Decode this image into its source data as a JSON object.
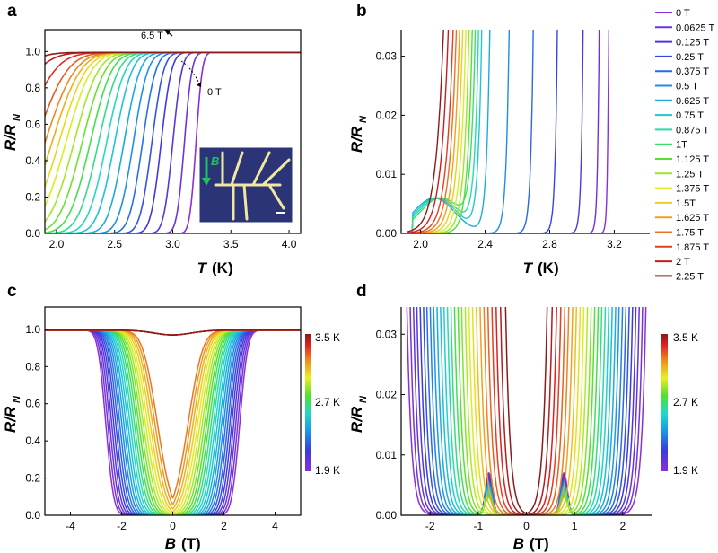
{
  "chart_data": [
    {
      "panel": "a",
      "type": "line",
      "xlabel": "T",
      "xunit": "(K)",
      "ylabel": "R/R",
      "ylabel_sub": "N",
      "xlim": [
        1.9,
        4.1
      ],
      "ylim": [
        0,
        1.12
      ],
      "xticks": [
        "2.0",
        "2.5",
        "3.0",
        "3.5",
        "4.0"
      ],
      "yticks": [
        "0.0",
        "0.2",
        "0.4",
        "0.6",
        "0.8",
        "1.0"
      ],
      "annotations": [
        "6.5 T",
        "0 T"
      ],
      "inset": {
        "type": "device micrograph",
        "field_arrow_label": "B"
      },
      "series": [
        {
          "tc": 3.2
        },
        {
          "tc": 3.1
        },
        {
          "tc": 3.0
        },
        {
          "tc": 2.9
        },
        {
          "tc": 2.82
        },
        {
          "tc": 2.74
        },
        {
          "tc": 2.66
        },
        {
          "tc": 2.58
        },
        {
          "tc": 2.5
        },
        {
          "tc": 2.43
        },
        {
          "tc": 2.36
        },
        {
          "tc": 2.29
        },
        {
          "tc": 2.22
        },
        {
          "tc": 2.15
        },
        {
          "tc": 2.08
        },
        {
          "tc": 2.02
        },
        {
          "tc": 1.96
        },
        {
          "tc": 1.9
        },
        {
          "tc": 1.82
        },
        {
          "tc": 1.7
        },
        {
          "tc": 1.55
        },
        {
          "tc": 1.4
        }
      ]
    },
    {
      "panel": "b",
      "type": "line",
      "xlabel": "T",
      "xunit": "(K)",
      "ylabel": "R/R",
      "ylabel_sub": "N",
      "xlim": [
        1.88,
        3.42
      ],
      "ylim": [
        0,
        0.0345
      ],
      "xticks": [
        "2.0",
        "2.4",
        "2.8",
        "3.2"
      ],
      "yticks": [
        "0.00",
        "0.01",
        "0.02",
        "0.03"
      ],
      "legend": [
        "0 T",
        "0.0625 T",
        "0.125 T",
        "0.25 T",
        "0.375 T",
        "0.5 T",
        "0.625 T",
        "0.75 T",
        "0.875 T",
        "1T",
        "1.125 T",
        "1.25 T",
        "1.375 T",
        "1.5T",
        "1.625 T",
        "1.75 T",
        "1.875 T",
        "2 T",
        "2.25 T"
      ],
      "legend_position": "right",
      "onsets": [
        3.13,
        3.06,
        2.95,
        2.78,
        2.62,
        2.46,
        2.33,
        2.27,
        2.24,
        2.21,
        2.18,
        2.15,
        2.12,
        2.09,
        2.06,
        2.03,
        2.0,
        1.96,
        1.92
      ]
    },
    {
      "panel": "c",
      "type": "line",
      "xlabel": "B",
      "xunit": "(T)",
      "ylabel": "R/R",
      "ylabel_sub": "N",
      "xlim": [
        -5,
        5
      ],
      "ylim": [
        0,
        1.12
      ],
      "xticks": [
        "-4",
        "-2",
        "0",
        "2",
        "4"
      ],
      "yticks": [
        "0.0",
        "0.2",
        "0.4",
        "0.6",
        "0.8",
        "1.0"
      ],
      "colorbar": {
        "min_label": "1.9 K",
        "mid_label": "2.7 K",
        "max_label": "3.5 K",
        "min": 1.9,
        "max": 3.5
      }
    },
    {
      "panel": "d",
      "type": "line",
      "xlabel": "B",
      "xunit": "(T)",
      "ylabel": "R/R",
      "ylabel_sub": "N",
      "xlim": [
        -2.6,
        2.6
      ],
      "ylim": [
        0,
        0.0345
      ],
      "xticks": [
        "-2",
        "-1",
        "0",
        "1",
        "2"
      ],
      "yticks": [
        "0.00",
        "0.01",
        "0.02",
        "0.03"
      ],
      "colorbar": {
        "min_label": "1.9 K",
        "mid_label": "2.7 K",
        "max_label": "3.5 K",
        "min": 1.9,
        "max": 3.5
      }
    }
  ],
  "panel_labels": [
    "a",
    "b",
    "c",
    "d"
  ],
  "colors": {
    "low": "#5a1a8c",
    "high": "#8b1a1a"
  }
}
